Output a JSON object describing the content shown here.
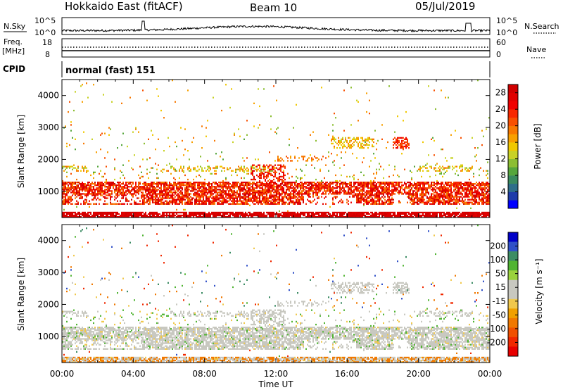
{
  "header": {
    "title": "Hokkaido East (fitACF)",
    "beam": "Beam 10",
    "date": "05/Jul/2019"
  },
  "noise_panel": {
    "left_label": "N.Sky",
    "right_label": "N.Search",
    "left_ticks": [
      "10^5",
      "10^0"
    ],
    "right_ticks": [
      "10^5",
      "10^0"
    ]
  },
  "freq_panel": {
    "left_label_1": "Freq.",
    "left_label_2": "[MHz]",
    "right_label": "Nave",
    "left_ticks": [
      "18",
      "8"
    ],
    "right_ticks": [
      "60",
      "0"
    ]
  },
  "cpid_panel": {
    "label": "CPID",
    "text": "normal (fast) 151"
  },
  "chart_data": [
    {
      "type": "heatmap",
      "name": "power",
      "ylabel": "Slant Range [km]",
      "xlabel": "Time UT",
      "x_ticks": [
        "00:00",
        "04:00",
        "08:00",
        "12:00",
        "16:00",
        "20:00",
        "00:00"
      ],
      "y_ticks": [
        1000,
        2000,
        3000,
        4000
      ],
      "ylim": [
        180,
        4500
      ],
      "xlim_hours": [
        0,
        24
      ],
      "colorbar": {
        "label": "Power [dB]",
        "ticks": [
          4,
          8,
          12,
          16,
          20,
          24,
          28
        ],
        "range": [
          0,
          30
        ],
        "colors": [
          "#0000ff",
          "#1e3caa",
          "#2e6e8a",
          "#3a8a5e",
          "#56a63c",
          "#8cbe32",
          "#c8d226",
          "#f0c800",
          "#f8a000",
          "#f87800",
          "#f85000",
          "#f82800",
          "#f00000",
          "#e00000",
          "#d00000"
        ]
      }
    },
    {
      "type": "heatmap",
      "name": "velocity",
      "ylabel": "Slant Range [km]",
      "xlabel": "Time UT",
      "x_ticks": [
        "00:00",
        "04:00",
        "08:00",
        "12:00",
        "16:00",
        "20:00",
        "00:00"
      ],
      "y_ticks": [
        1000,
        2000,
        3000,
        4000
      ],
      "ylim": [
        180,
        4500
      ],
      "xlim_hours": [
        0,
        24
      ],
      "colorbar": {
        "label": "Velocity [m s⁻¹]",
        "ticks": [
          "200",
          "100",
          "50",
          "15",
          "-15",
          "-50",
          "-100",
          "-200"
        ],
        "colors": [
          "#0000c8",
          "#3050c8",
          "#3c8c64",
          "#50b432",
          "#9ad23c",
          "#c8c8c0",
          "#c8c8c0",
          "#f0c84c",
          "#f0a000",
          "#f07800",
          "#f05000",
          "#f02800",
          "#e80000"
        ]
      }
    }
  ],
  "colors": {
    "ground_scatter": "#c8c8c0",
    "axis": "#000000"
  }
}
